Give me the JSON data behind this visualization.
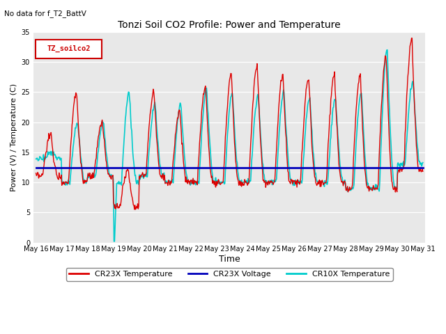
{
  "title": "Tonzi Soil CO2 Profile: Power and Temperature",
  "subtitle": "No data for f_T2_BattV",
  "xlabel": "Time",
  "ylabel": "Power (V) / Temperature (C)",
  "ylim": [
    0,
    35
  ],
  "yticks": [
    0,
    5,
    10,
    15,
    20,
    25,
    30,
    35
  ],
  "xtick_labels": [
    "May 16",
    "May 17",
    "May 18",
    "May 19",
    "May 20",
    "May 21",
    "May 22",
    "May 23",
    "May 24",
    "May 25",
    "May 26",
    "May 27",
    "May 28",
    "May 29",
    "May 30",
    "May 31"
  ],
  "voltage_value": 12.5,
  "voltage_color": "#0000bb",
  "cr23x_temp_color": "#dd0000",
  "cr10x_temp_color": "#00cccc",
  "plot_bg_color": "#e8e8e8",
  "legend_label": "TZ_soilco2",
  "legend_entries": [
    "CR23X Temperature",
    "CR23X Voltage",
    "CR10X Temperature"
  ],
  "legend_colors": [
    "#dd0000",
    "#0000bb",
    "#00cccc"
  ],
  "figsize": [
    6.4,
    4.8
  ],
  "dpi": 100
}
